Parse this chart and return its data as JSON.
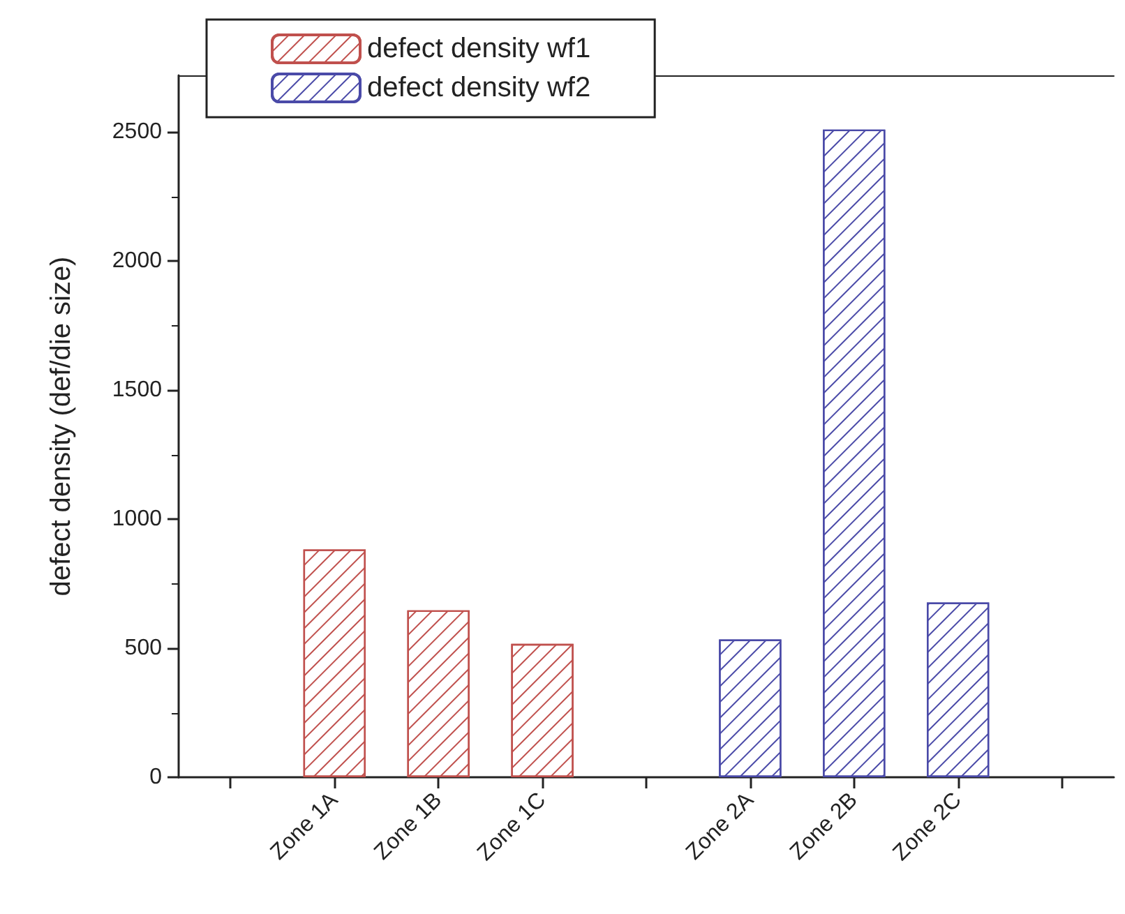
{
  "chart_data": {
    "type": "bar",
    "ylabel": "defect density (def/die size)",
    "categories": [
      null,
      "Zone 1A",
      "Zone 1B",
      "Zone 1C",
      null,
      "Zone 2A",
      "Zone 2B",
      "Zone 2C",
      null
    ],
    "series": [
      {
        "name": "defect density wf1",
        "color": "#c0504d",
        "values": [
          null,
          883,
          647,
          517,
          null,
          null,
          null,
          null,
          null
        ]
      },
      {
        "name": "defect density wf2",
        "color": "#4a4aa8",
        "values": [
          null,
          null,
          null,
          null,
          null,
          534,
          2510,
          677,
          null
        ]
      }
    ],
    "ylim": [
      0,
      2720
    ],
    "yticks": [
      0,
      500,
      1000,
      1500,
      2000,
      2500
    ],
    "grid": false,
    "legend": "top left"
  }
}
